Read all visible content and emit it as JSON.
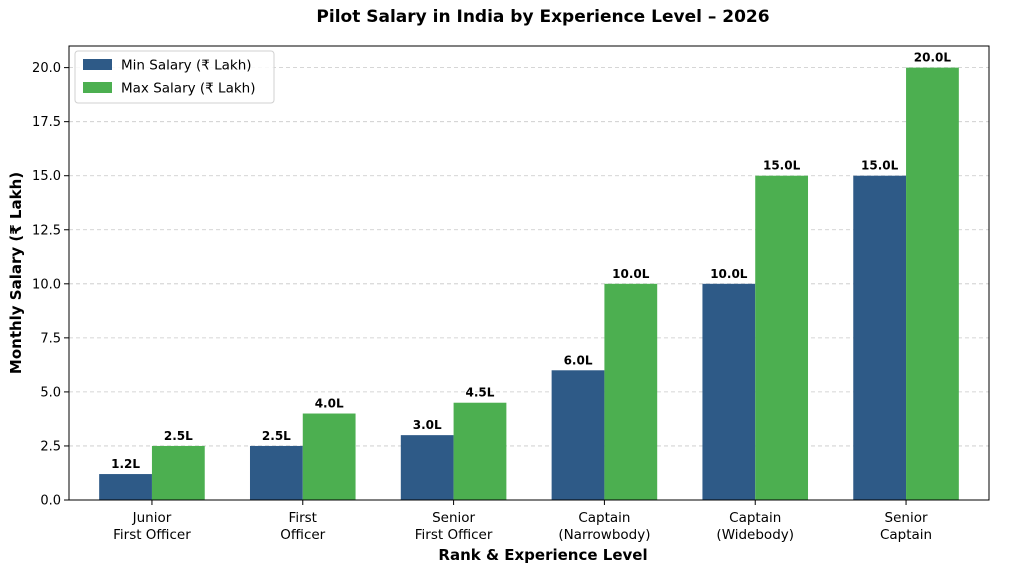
{
  "chart_data": {
    "type": "bar",
    "title": "Pilot Salary in India by Experience Level – 2026",
    "xlabel": "Rank & Experience Level",
    "ylabel": "Monthly Salary (₹ Lakh)",
    "ylim": [
      0,
      21
    ],
    "yticks": [
      "0.0",
      "2.5",
      "5.0",
      "7.5",
      "10.0",
      "12.5",
      "15.0",
      "17.5",
      "20.0"
    ],
    "ytick_values": [
      0,
      2.5,
      5,
      7.5,
      10,
      12.5,
      15,
      17.5,
      20
    ],
    "grid": "y-dashed",
    "legend_position": "top-left",
    "categories": [
      [
        "Junior",
        "First Officer"
      ],
      [
        "First",
        "Officer"
      ],
      [
        "Senior",
        "First Officer"
      ],
      [
        "Captain",
        "(Narrowbody)"
      ],
      [
        "Captain",
        "(Widebody)"
      ],
      [
        "Senior",
        "Captain"
      ]
    ],
    "series": [
      {
        "name": "Min Salary (₹ Lakh)",
        "color": "#2e5a87",
        "values": [
          1.2,
          2.5,
          3.0,
          6.0,
          10.0,
          15.0
        ],
        "labels": [
          "1.2L",
          "2.5L",
          "3.0L",
          "6.0L",
          "10.0L",
          "15.0L"
        ]
      },
      {
        "name": "Max Salary (₹ Lakh)",
        "color": "#4caf50",
        "values": [
          2.5,
          4.0,
          4.5,
          10.0,
          15.0,
          20.0
        ],
        "labels": [
          "2.5L",
          "4.0L",
          "4.5L",
          "10.0L",
          "15.0L",
          "20.0L"
        ]
      }
    ]
  }
}
